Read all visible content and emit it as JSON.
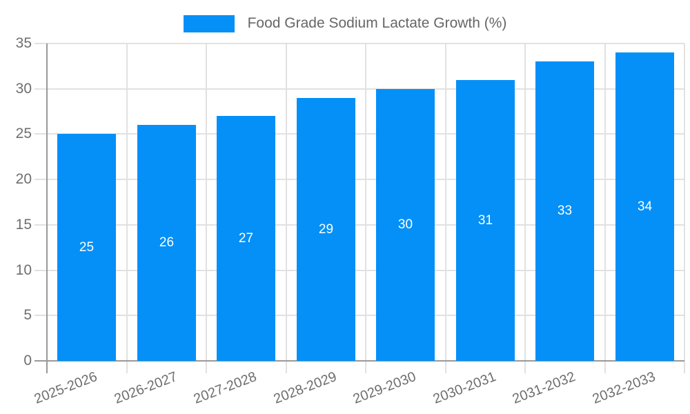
{
  "legend": {
    "label": "Food Grade Sodium Lactate Growth (%)"
  },
  "chart_data": {
    "type": "bar",
    "title": "Food Grade Sodium Lactate Growth (%)",
    "categories": [
      "2025-2026",
      "2026-2027",
      "2027-2028",
      "2028-2029",
      "2029-2030",
      "2030-2031",
      "2031-2032",
      "2032-2033"
    ],
    "values": [
      25,
      26,
      27,
      29,
      30,
      31,
      33,
      34
    ],
    "value_labels": [
      "25",
      "26",
      "27",
      "29",
      "30",
      "31",
      "33",
      "34"
    ],
    "xlabel": "",
    "ylabel": "",
    "ylim": [
      0,
      35
    ],
    "yticks": [
      0,
      5,
      10,
      15,
      20,
      25,
      30,
      35
    ],
    "ytick_labels": [
      "0",
      "5",
      "10",
      "15",
      "20",
      "25",
      "30",
      "35"
    ],
    "grid": true,
    "legend_position": "top-center",
    "colors": {
      "bar": "#0590f8",
      "grid": "#e1e1e1",
      "axis": "#999999",
      "tick_text": "#6e6e6e",
      "legend_text": "#666666",
      "value_label": "#ffffff",
      "background": "#ffffff"
    }
  }
}
